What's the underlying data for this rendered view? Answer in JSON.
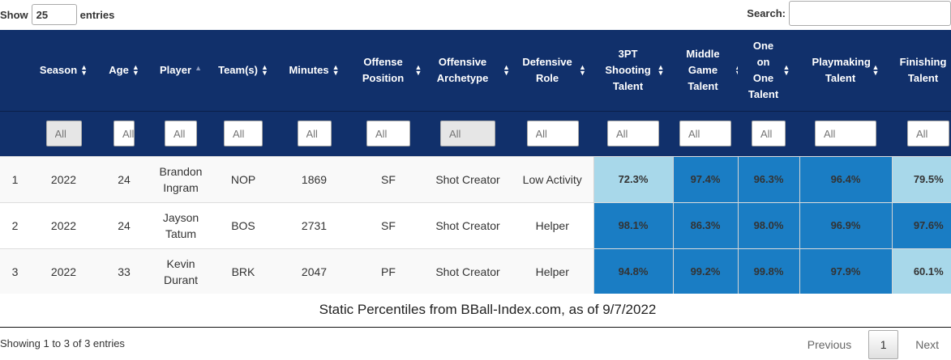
{
  "length": {
    "prefix": "Show",
    "value": "25",
    "suffix": "entries"
  },
  "search": {
    "label": "Search:",
    "value": ""
  },
  "columns": [
    {
      "label": "",
      "sort": "none"
    },
    {
      "label": "Season",
      "sort": "both"
    },
    {
      "label": "Age",
      "sort": "both"
    },
    {
      "label": "Player",
      "sort": "asc"
    },
    {
      "label": "Team(s)",
      "sort": "both"
    },
    {
      "label": "Minutes",
      "sort": "both"
    },
    {
      "label": "Offense Position",
      "sort": "both"
    },
    {
      "label": "Offensive Archetype",
      "sort": "both"
    },
    {
      "label": "Defensive Role",
      "sort": "both"
    },
    {
      "label": "3PT Shooting Talent",
      "sort": "both"
    },
    {
      "label": "Middle Game Talent",
      "sort": "both"
    },
    {
      "label": "One on One Talent",
      "sort": "both"
    },
    {
      "label": "Playmaking Talent",
      "sort": "both"
    },
    {
      "label": "Finishing Talent",
      "sort": "both"
    }
  ],
  "filters": [
    "All",
    "All",
    "All",
    "All",
    "All",
    "All",
    "All",
    "All",
    "All",
    "All",
    "All",
    "All",
    "All"
  ],
  "rows": [
    {
      "rank": "1",
      "season": "2022",
      "age": "24",
      "player": "Brandon Ingram",
      "team": "NOP",
      "minutes": "1869",
      "position": "SF",
      "archetype": "Shot Creator",
      "role": "Low Activity",
      "three_pt": "72.3%",
      "middle": "97.4%",
      "one_on_one": "96.3%",
      "playmaking": "96.4%",
      "finishing": "79.5%"
    },
    {
      "rank": "2",
      "season": "2022",
      "age": "24",
      "player": "Jayson Tatum",
      "team": "BOS",
      "minutes": "2731",
      "position": "SF",
      "archetype": "Shot Creator",
      "role": "Helper",
      "three_pt": "98.1%",
      "middle": "86.3%",
      "one_on_one": "98.0%",
      "playmaking": "96.9%",
      "finishing": "97.6%"
    },
    {
      "rank": "3",
      "season": "2022",
      "age": "33",
      "player": "Kevin Durant",
      "team": "BRK",
      "minutes": "2047",
      "position": "PF",
      "archetype": "Shot Creator",
      "role": "Helper",
      "three_pt": "94.8%",
      "middle": "99.2%",
      "one_on_one": "99.8%",
      "playmaking": "97.9%",
      "finishing": "60.1%"
    }
  ],
  "caption": "Static Percentiles from BBall-Index.com, as of 9/7/2022",
  "info": "Showing 1 to 3 of 3 entries",
  "pagination": {
    "previous": "Previous",
    "current": "1",
    "next": "Next"
  },
  "colors": {
    "header_bg": "#11306b",
    "high_pct": "#1a7dc4",
    "low_pct": "#a8d8ea"
  }
}
